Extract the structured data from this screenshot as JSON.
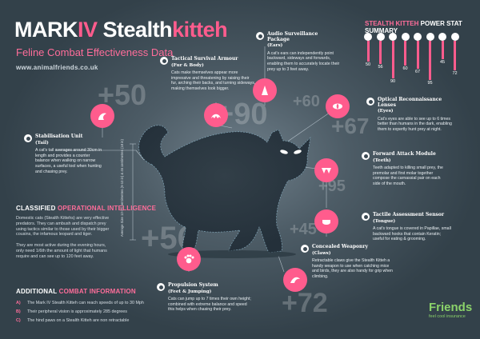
{
  "header": {
    "title_mark": "MARK",
    "title_roman": "IV",
    "title_stealth": "Stealth",
    "title_kitteh": "kitteh",
    "subtitle": "Feline Combat Effectiveness Data",
    "site": "www.animalfriends.co.uk"
  },
  "big_numbers": [
    "+50",
    "+90",
    "+60",
    "+67",
    "+95",
    "+56",
    "+45",
    "+72"
  ],
  "axis_label": "Average Size 12-25 centimetres (5-10 in) & 46 centimetres (18 in)",
  "callouts": {
    "stabilisation": {
      "title": "Stabilisation Unit",
      "sub": "(Tail)",
      "text": "A cat's tail averages around 30cm in length and provides a counter balance when walking on narrow surfaces, a useful tool when hunting and chasing prey."
    },
    "survival": {
      "title": "Tactical Survival Armour",
      "sub": "(Fur & Body)",
      "text": "Cats make themselves appear more impressive and threatening by raising their fur, arching their backs, and turning sideways, making themselves look bigger."
    },
    "audio": {
      "title": "Audio Surveillance Package",
      "sub": "(Ears)",
      "text": "A cat's ears can independently point backward, sideways and forwards, enabling them to accurately locate their prey up to 3 feet away."
    },
    "optical": {
      "title": "Optical Reconnaissance Lenses",
      "sub": "(Eyes)",
      "text": "Cat's eyes are able to see up to 6 times better than humans in the dark, enabling them to expertly hunt prey at night."
    },
    "attack": {
      "title": "Forward Attack Module",
      "sub": "(Teeth)",
      "text": "Teeth adapted to killing small prey, the premolar and first molar together compose the carnassial pair on each side of the mouth."
    },
    "tactile": {
      "title": "Tactile Assessment Sensor",
      "sub": "(Tongue)",
      "text": "A cat's tongue is covered in Papillae, small backward hooks that contain Keratin; useful for eating & grooming."
    },
    "weaponry": {
      "title": "Concealed Weaponry",
      "sub": "(Claws)",
      "text": "Retractable claws give the Stealth Kitteh a handy weapon to use when catching mice and birds, they are also handy for grip when climbing."
    },
    "propulsion": {
      "title": "Propulsion System",
      "sub": "(Feet & Jumping)",
      "text": "Cats can jump up to 7 times their own height; combined with extreme balance and speed this helps when chasing their prey."
    }
  },
  "classified": {
    "heading_white": "CLASSIFIED",
    "heading_pink": "OPERATIONAL INTELLIGENCE",
    "p1": "Domestic cats (Stealth Kittehs) are very effective predators. They can ambush and dispatch prey using tactics similar to those used by their bigger cousins, the infamous leopard and tiger.",
    "p2": "They are most active during the evening hours, only need 1/6th the amount of light that humans require and can see up to 120 feet away."
  },
  "additional": {
    "heading_white": "ADDITIONAL",
    "heading_pink": "COMBAT INFORMATION",
    "items": [
      {
        "key": "A)",
        "text": "The Mark IV Stealth Kitteh can reach speeds of up to 30 Mph"
      },
      {
        "key": "B)",
        "text": "Their peripheral vision is approximately 285 degrees"
      },
      {
        "key": "C)",
        "text": "The hind paws on a Stealth Kitteh are non retractable"
      }
    ]
  },
  "stats": {
    "title_white": "STEALTH KITTEH",
    "title_rest": "POWER STAT SUMMARY",
    "values": [
      50,
      56,
      90,
      60,
      67,
      95,
      45,
      72
    ]
  },
  "logo": {
    "name": "Friends",
    "tagline": "feel cool insurance"
  },
  "colors": {
    "accent": "#ff5c8d",
    "background": "#33414a",
    "logo": "#8bd36a"
  }
}
